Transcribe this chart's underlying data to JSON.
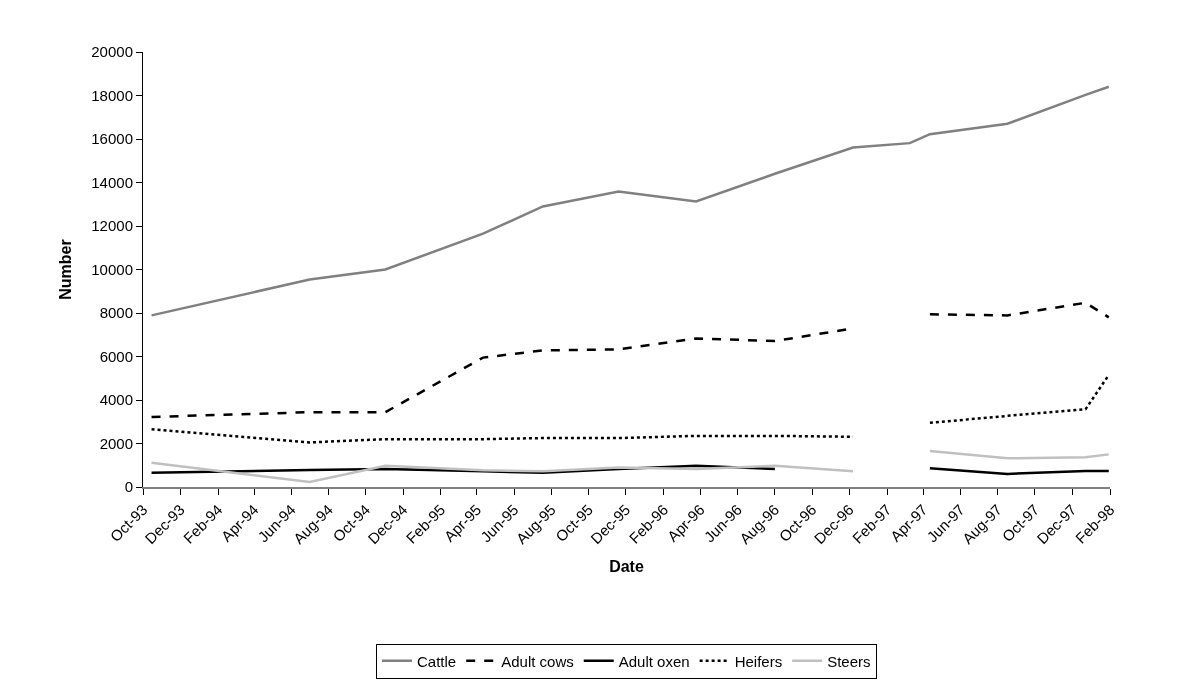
{
  "chart_data": {
    "type": "line",
    "xlabel": "Date",
    "ylabel": "Number",
    "x": [
      "1993-10-15",
      "1994-07-01",
      "1994-11-02",
      "1995-04-11",
      "1995-07-18",
      "1995-11-19",
      "1996-03-25",
      "1996-08-01",
      "1996-12-07",
      "1997-03-10",
      "1997-04-12",
      "1997-08-17",
      "1997-12-23",
      "1998-01-30"
    ],
    "series": [
      {
        "name": "Cattle",
        "color": "#808080",
        "line_style": "solid",
        "values": [
          7890,
          9540,
          10000,
          11650,
          12900,
          13590,
          13130,
          14400,
          15610,
          15810,
          16220,
          16700,
          18030,
          18400
        ]
      },
      {
        "name": "Adult cows",
        "color": "#000000",
        "line_style": "dashed",
        "values": [
          3220,
          3440,
          3440,
          5950,
          6280,
          6330,
          6830,
          6710,
          7290,
          null,
          7940,
          7890,
          8470,
          7800
        ]
      },
      {
        "name": "Adult oxen",
        "color": "#000000",
        "line_style": "solid",
        "values": [
          650,
          780,
          830,
          720,
          650,
          830,
          980,
          830,
          null,
          null,
          860,
          600,
          740,
          740
        ]
      },
      {
        "name": "Heifers",
        "color": "#000000",
        "line_style": "dotted",
        "values": [
          2660,
          2050,
          2200,
          2200,
          2250,
          2250,
          2350,
          2350,
          2310,
          null,
          2950,
          3270,
          3580,
          5150
        ]
      },
      {
        "name": "Steers",
        "color": "#c0c0c0",
        "line_style": "solid",
        "values": [
          1110,
          230,
          980,
          770,
          720,
          900,
          830,
          980,
          720,
          null,
          1650,
          1320,
          1370,
          1500
        ]
      }
    ],
    "xlim": [
      "1993-10-01",
      "1998-02-01"
    ],
    "xticks": [
      {
        "value": "1993-10-01",
        "label": "Oct-93"
      },
      {
        "value": "1993-12-01",
        "label": "Dec-93"
      },
      {
        "value": "1994-02-01",
        "label": "Feb-94"
      },
      {
        "value": "1994-04-01",
        "label": "Apr-94"
      },
      {
        "value": "1994-06-01",
        "label": "Jun-94"
      },
      {
        "value": "1994-08-01",
        "label": "Aug-94"
      },
      {
        "value": "1994-10-01",
        "label": "Oct-94"
      },
      {
        "value": "1994-12-01",
        "label": "Dec-94"
      },
      {
        "value": "1995-02-01",
        "label": "Feb-95"
      },
      {
        "value": "1995-04-01",
        "label": "Apr-95"
      },
      {
        "value": "1995-06-01",
        "label": "Jun-95"
      },
      {
        "value": "1995-08-01",
        "label": "Aug-95"
      },
      {
        "value": "1995-10-01",
        "label": "Oct-95"
      },
      {
        "value": "1995-12-01",
        "label": "Dec-95"
      },
      {
        "value": "1996-02-01",
        "label": "Feb-96"
      },
      {
        "value": "1996-04-01",
        "label": "Apr-96"
      },
      {
        "value": "1996-06-01",
        "label": "Jun-96"
      },
      {
        "value": "1996-08-01",
        "label": "Aug-96"
      },
      {
        "value": "1996-10-01",
        "label": "Oct-96"
      },
      {
        "value": "1996-12-01",
        "label": "Dec-96"
      },
      {
        "value": "1997-02-01",
        "label": "Feb-97"
      },
      {
        "value": "1997-04-01",
        "label": "Apr-97"
      },
      {
        "value": "1997-06-01",
        "label": "Jun-97"
      },
      {
        "value": "1997-08-01",
        "label": "Aug-97"
      },
      {
        "value": "1997-10-01",
        "label": "Oct-97"
      },
      {
        "value": "1997-12-01",
        "label": "Dec-97"
      },
      {
        "value": "1998-02-01",
        "label": "Feb-98"
      }
    ],
    "ylim": [
      0,
      20000
    ],
    "yticks": [
      0,
      2000,
      4000,
      6000,
      8000,
      10000,
      12000,
      14000,
      16000,
      18000,
      20000
    ],
    "grid": false,
    "legend": "bottom"
  }
}
